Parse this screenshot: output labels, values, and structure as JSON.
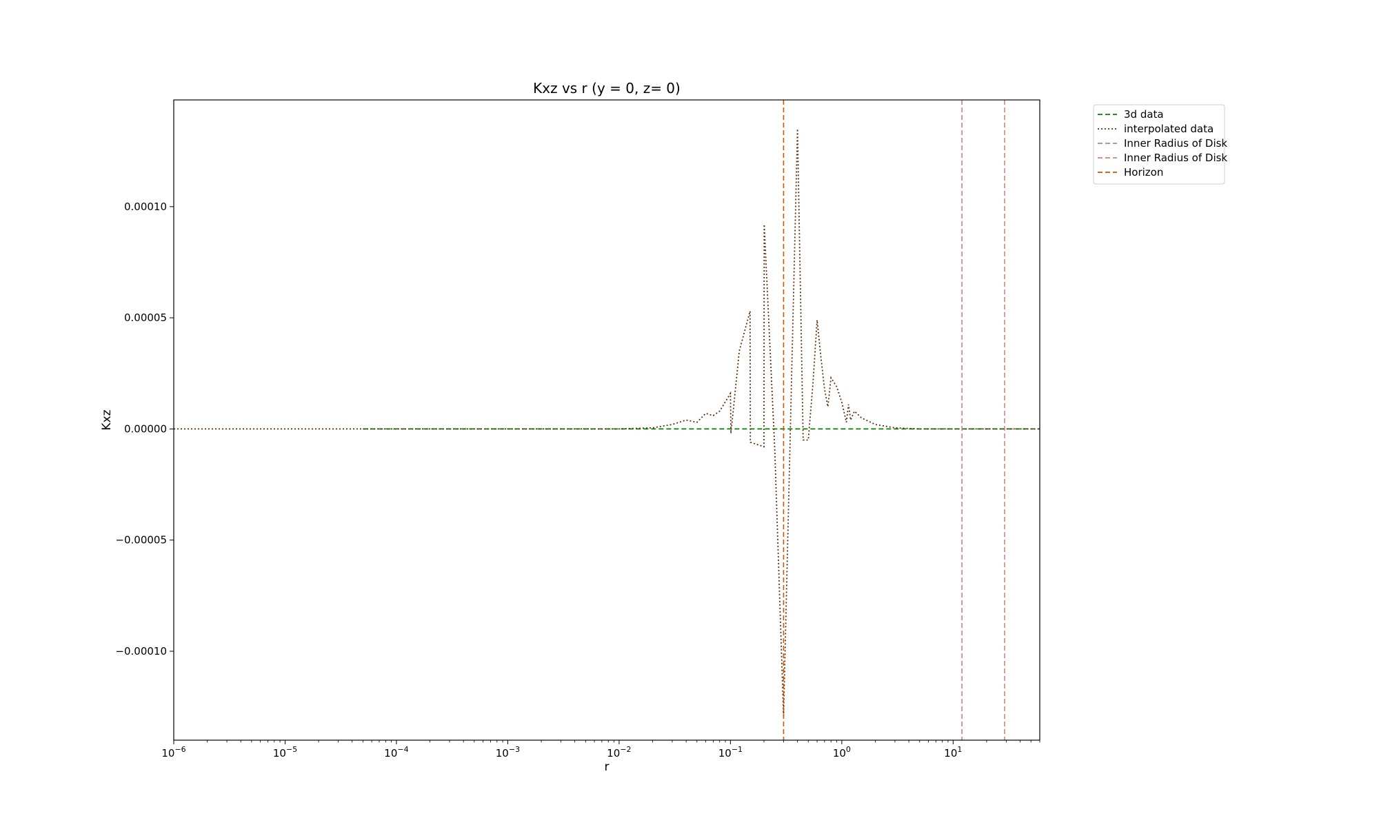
{
  "chart_data": {
    "type": "line",
    "title": "Kxz vs r (y = 0, z= 0)",
    "xlabel": "r",
    "ylabel": "Kxz",
    "xscale": "log",
    "xlim": [
      1e-06,
      60
    ],
    "ylim": [
      -0.00014,
      0.000148
    ],
    "x_tick_labels": [
      {
        "base": "10",
        "exp": "−6",
        "value": 1e-06
      },
      {
        "base": "10",
        "exp": "−5",
        "value": 1e-05
      },
      {
        "base": "10",
        "exp": "−4",
        "value": 0.0001
      },
      {
        "base": "10",
        "exp": "−3",
        "value": 0.001
      },
      {
        "base": "10",
        "exp": "−2",
        "value": 0.01
      },
      {
        "base": "10",
        "exp": "−1",
        "value": 0.1
      },
      {
        "base": "10",
        "exp": "0",
        "value": 1
      },
      {
        "base": "10",
        "exp": "1",
        "value": 10
      }
    ],
    "y_tick_labels": [
      {
        "label": "0.00010",
        "value": 0.0001
      },
      {
        "label": "0.00005",
        "value": 5e-05
      },
      {
        "label": "0.00000",
        "value": 0
      },
      {
        "label": "−0.00005",
        "value": -5e-05
      },
      {
        "label": "−0.00010",
        "value": -0.0001
      }
    ],
    "grid": false,
    "legend_position": "outside-right-top",
    "series": [
      {
        "name": "3d data",
        "style": "dashed",
        "color": "#008000",
        "x": [
          5e-05,
          60
        ],
        "y": [
          0,
          0
        ]
      },
      {
        "name": "interpolated data",
        "style": "dotted",
        "color": "#5a2d0c",
        "x": [
          1e-06,
          5e-05,
          0.001,
          0.01,
          0.02,
          0.03,
          0.04,
          0.05,
          0.06,
          0.07,
          0.08,
          0.1,
          0.101,
          0.12,
          0.15,
          0.151,
          0.2,
          0.201,
          0.25,
          0.3,
          0.4,
          0.45,
          0.5,
          0.55,
          0.6,
          0.65,
          0.7,
          0.75,
          0.8,
          0.9,
          1.0,
          1.1,
          1.15,
          1.2,
          1.3,
          1.5,
          2.0,
          3.0,
          5.0,
          10,
          60
        ],
        "y": [
          0,
          0,
          0,
          0,
          5e-07,
          2e-06,
          4e-06,
          3e-06,
          7e-06,
          6e-06,
          8e-06,
          1.6e-05,
          -2e-06,
          3.5e-05,
          5.3e-05,
          -6e-06,
          -8e-06,
          9.2e-05,
          -9e-06,
          -0.000129,
          0.000135,
          -5e-06,
          -5e-06,
          2e-05,
          4.9e-05,
          3.2e-05,
          1.8e-05,
          1e-05,
          2.3e-05,
          1.9e-05,
          1.2e-05,
          3e-06,
          1.1e-05,
          4e-06,
          8e-06,
          5e-06,
          2e-06,
          5e-07,
          0,
          0,
          0
        ]
      },
      {
        "name": "Inner Radius of Disk",
        "style": "dashed",
        "orientation": "vertical",
        "color": "#c77f8a",
        "x": 12
      },
      {
        "name": "Inner Radius of Disk",
        "style": "dashed",
        "orientation": "vertical",
        "color": "#c9877c",
        "x": 29
      },
      {
        "name": "Horizon",
        "style": "dashed",
        "orientation": "vertical",
        "color": "#cc5500",
        "x": 0.3
      }
    ]
  }
}
